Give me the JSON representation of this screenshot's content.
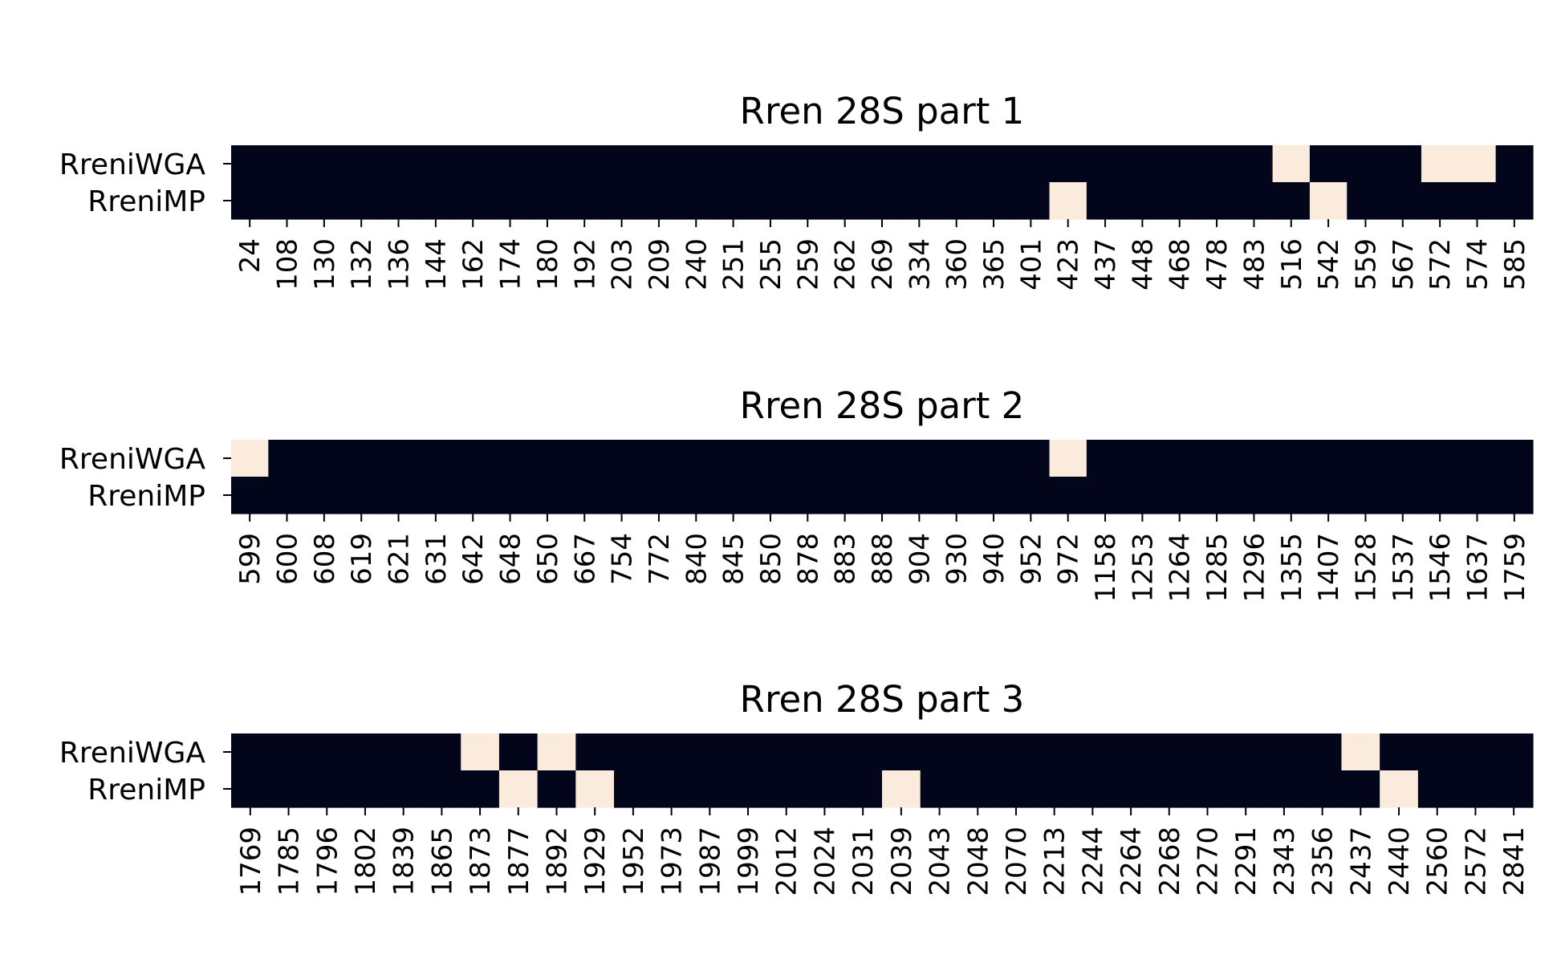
{
  "chart_data": [
    {
      "type": "heatmap",
      "title": "Rren 28S part 1",
      "rows": [
        "RreniWGA",
        "RreniMP"
      ],
      "columns": [
        "24",
        "108",
        "130",
        "132",
        "136",
        "144",
        "162",
        "174",
        "180",
        "192",
        "203",
        "209",
        "240",
        "251",
        "255",
        "259",
        "262",
        "269",
        "334",
        "360",
        "365",
        "401",
        "423",
        "437",
        "448",
        "468",
        "478",
        "483",
        "516",
        "542",
        "559",
        "567",
        "572",
        "574",
        "585"
      ],
      "values": [
        [
          0,
          0,
          0,
          0,
          0,
          0,
          0,
          0,
          0,
          0,
          0,
          0,
          0,
          0,
          0,
          0,
          0,
          0,
          0,
          0,
          0,
          0,
          0,
          0,
          0,
          0,
          0,
          0,
          1,
          0,
          0,
          0,
          1,
          1,
          0
        ],
        [
          0,
          0,
          0,
          0,
          0,
          0,
          0,
          0,
          0,
          0,
          0,
          0,
          0,
          0,
          0,
          0,
          0,
          0,
          0,
          0,
          0,
          0,
          1,
          0,
          0,
          0,
          0,
          0,
          0,
          1,
          0,
          0,
          0,
          0,
          0
        ]
      ]
    },
    {
      "type": "heatmap",
      "title": "Rren 28S part 2",
      "rows": [
        "RreniWGA",
        "RreniMP"
      ],
      "columns": [
        "599",
        "600",
        "608",
        "619",
        "621",
        "631",
        "642",
        "648",
        "650",
        "667",
        "754",
        "772",
        "840",
        "845",
        "850",
        "878",
        "883",
        "888",
        "904",
        "930",
        "940",
        "952",
        "972",
        "1158",
        "1253",
        "1264",
        "1285",
        "1296",
        "1355",
        "1407",
        "1528",
        "1537",
        "1546",
        "1637",
        "1759"
      ],
      "values": [
        [
          1,
          0,
          0,
          0,
          0,
          0,
          0,
          0,
          0,
          0,
          0,
          0,
          0,
          0,
          0,
          0,
          0,
          0,
          0,
          0,
          0,
          0,
          1,
          0,
          0,
          0,
          0,
          0,
          0,
          0,
          0,
          0,
          0,
          0,
          0
        ],
        [
          0,
          0,
          0,
          0,
          0,
          0,
          0,
          0,
          0,
          0,
          0,
          0,
          0,
          0,
          0,
          0,
          0,
          0,
          0,
          0,
          0,
          0,
          0,
          0,
          0,
          0,
          0,
          0,
          0,
          0,
          0,
          0,
          0,
          0,
          0
        ]
      ]
    },
    {
      "type": "heatmap",
      "title": "Rren 28S part 3",
      "rows": [
        "RreniWGA",
        "RreniMP"
      ],
      "columns": [
        "1769",
        "1785",
        "1796",
        "1802",
        "1839",
        "1865",
        "1873",
        "1877",
        "1892",
        "1929",
        "1952",
        "1973",
        "1987",
        "1999",
        "2012",
        "2024",
        "2031",
        "2039",
        "2043",
        "2048",
        "2070",
        "2213",
        "2244",
        "2264",
        "2268",
        "2270",
        "2291",
        "2343",
        "2356",
        "2437",
        "2440",
        "2560",
        "2572",
        "2841"
      ],
      "values": [
        [
          0,
          0,
          0,
          0,
          0,
          0,
          1,
          0,
          1,
          0,
          0,
          0,
          0,
          0,
          0,
          0,
          0,
          0,
          0,
          0,
          0,
          0,
          0,
          0,
          0,
          0,
          0,
          0,
          0,
          1,
          0,
          0,
          0,
          0
        ],
        [
          0,
          0,
          0,
          0,
          0,
          0,
          0,
          1,
          0,
          1,
          0,
          0,
          0,
          0,
          0,
          0,
          0,
          1,
          0,
          0,
          0,
          0,
          0,
          0,
          0,
          0,
          0,
          0,
          0,
          0,
          1,
          0,
          0,
          0
        ]
      ]
    }
  ],
  "colors": {
    "low": "#03051a",
    "high": "#faebdd",
    "background": "#ffffff"
  }
}
